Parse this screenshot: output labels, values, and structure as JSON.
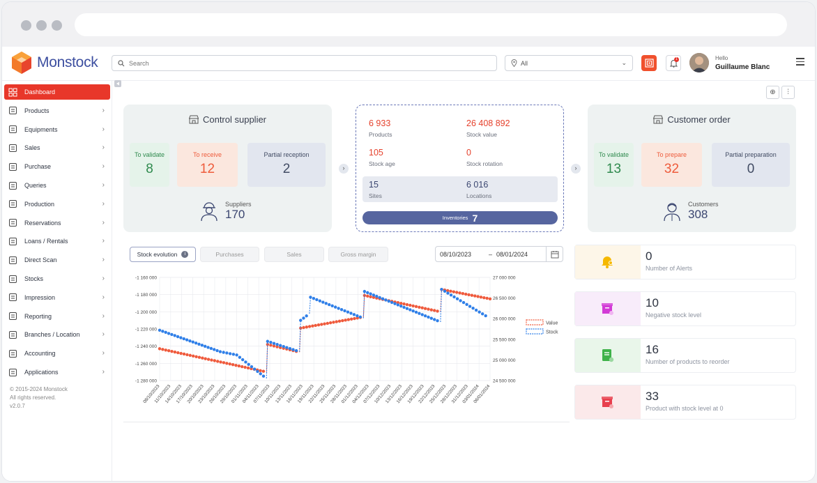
{
  "app": {
    "brand": "Monstock"
  },
  "topbar": {
    "search_placeholder": "Search",
    "site_filter": "All",
    "notifications_count": "1",
    "greeting": "Hello",
    "user_name": "Guillaume Blanc"
  },
  "sidebar": {
    "items": [
      {
        "label": "Dashboard",
        "icon": "grid-icon",
        "active": true
      },
      {
        "label": "Products",
        "icon": "box-icon"
      },
      {
        "label": "Equipments",
        "icon": "wrench-icon"
      },
      {
        "label": "Sales",
        "icon": "sales-icon"
      },
      {
        "label": "Purchase",
        "icon": "truck-icon"
      },
      {
        "label": "Queries",
        "icon": "alert-icon"
      },
      {
        "label": "Production",
        "icon": "production-icon"
      },
      {
        "label": "Reservations",
        "icon": "calendar-icon"
      },
      {
        "label": "Loans / Rentals",
        "icon": "pin-icon"
      },
      {
        "label": "Direct Scan",
        "icon": "scan-icon"
      },
      {
        "label": "Stocks",
        "icon": "warehouse-icon"
      },
      {
        "label": "Impression",
        "icon": "tag-icon"
      },
      {
        "label": "Reporting",
        "icon": "report-icon"
      },
      {
        "label": "Branches / Location",
        "icon": "branch-icon"
      },
      {
        "label": "Accounting",
        "icon": "accounting-icon"
      },
      {
        "label": "Applications",
        "icon": "clipboard-icon"
      }
    ],
    "copyright": [
      "© 2015-2024 Monstock",
      "All rights reserved.",
      "v2.0.7"
    ]
  },
  "control_supplier": {
    "title": "Control supplier",
    "to_validate": {
      "label": "To validate",
      "value": "8"
    },
    "to_receive": {
      "label": "To receive",
      "value": "12"
    },
    "partial_reception": {
      "label": "Partial reception",
      "value": "2"
    },
    "suppliers": {
      "label": "Suppliers",
      "value": "170"
    }
  },
  "stock_summary": {
    "products": {
      "label": "Products",
      "value": "6 933"
    },
    "stock_value": {
      "label": "Stock value",
      "value": "26 408 892"
    },
    "stock_age": {
      "label": "Stock age",
      "value": "105"
    },
    "stock_rotation": {
      "label": "Stock rotation",
      "value": "0"
    },
    "sites": {
      "label": "Sites",
      "value": "15"
    },
    "locations": {
      "label": "Locations",
      "value": "6 016"
    },
    "inventories": {
      "label": "Inventories",
      "value": "7"
    }
  },
  "customer_order": {
    "title": "Customer order",
    "to_validate": {
      "label": "To validate",
      "value": "13"
    },
    "to_prepare": {
      "label": "To prepare",
      "value": "32"
    },
    "partial_preparation": {
      "label": "Partial preparation",
      "value": "0"
    },
    "customers": {
      "label": "Customers",
      "value": "308"
    }
  },
  "tabs": [
    "Stock evolution",
    "Purchases",
    "Sales",
    "Gross margin"
  ],
  "date_range": {
    "from": "08/10/2023",
    "sep": "–",
    "to": "08/01/2024"
  },
  "kpis": [
    {
      "value": "0",
      "label": "Number of Alerts",
      "icon": "bell-alert-icon",
      "bg": "#fdf6e8",
      "color": "#f5b800"
    },
    {
      "value": "10",
      "label": "Negative stock level",
      "icon": "box-minus-icon",
      "bg": "#f8ecfa",
      "color": "#d23bd6"
    },
    {
      "value": "16",
      "label": "Number of products to reorder",
      "icon": "reorder-icon",
      "bg": "#e9f6ea",
      "color": "#3fb24a"
    },
    {
      "value": "33",
      "label": "Product with stock level at 0",
      "icon": "box-zero-icon",
      "bg": "#fbe9ea",
      "color": "#e8404e"
    }
  ],
  "chart_data": {
    "type": "line",
    "x": [
      "08/10/2023",
      "11/10/2023",
      "14/10/2023",
      "17/10/2023",
      "20/10/2023",
      "23/10/2023",
      "26/10/2023",
      "29/10/2023",
      "01/11/2023",
      "04/11/2023",
      "07/11/2023",
      "10/11/2023",
      "13/11/2023",
      "16/11/2023",
      "19/11/2023",
      "22/11/2023",
      "25/11/2023",
      "28/11/2023",
      "01/12/2023",
      "04/12/2023",
      "07/12/2023",
      "10/12/2023",
      "13/12/2023",
      "16/12/2023",
      "19/12/2023",
      "22/12/2023",
      "25/12/2023",
      "28/12/2023",
      "31/12/2023",
      "03/01/2024",
      "06/01/2024"
    ],
    "y_left": {
      "ticks": [
        "-1 160 000",
        "-1 180 000",
        "-1 200 000",
        "-1 220 000",
        "-1 240 000",
        "-1 260 000",
        "-1 280 000"
      ],
      "range": [
        -1280000,
        -1160000
      ]
    },
    "y_right": {
      "ticks": [
        "27 000 000",
        "26 500 000",
        "26 000 000",
        "25 500 000",
        "25 000 000",
        "24 500 000"
      ],
      "range": [
        24500000,
        27000000
      ]
    },
    "legend_position": "right",
    "series": [
      {
        "name": "Value",
        "axis": "left",
        "color": "#ef5a3c",
        "points": [
          [
            0,
            -1243000
          ],
          [
            9.7,
            -1270000
          ],
          [
            9.8,
            -1238000
          ],
          [
            12.7,
            -1247000
          ],
          [
            12.8,
            -1219000
          ],
          [
            18.5,
            -1206000
          ],
          [
            18.6,
            -1181000
          ],
          [
            25.5,
            -1200000
          ],
          [
            25.6,
            -1174000
          ],
          [
            30,
            -1185000
          ]
        ]
      },
      {
        "name": "Stock",
        "axis": "right",
        "color": "#2f7fe8",
        "points": [
          [
            0,
            25720000
          ],
          [
            5.5,
            25200000
          ],
          [
            7,
            25120000
          ],
          [
            9.7,
            24550000
          ],
          [
            9.8,
            25450000
          ],
          [
            12.7,
            25200000
          ],
          [
            12.8,
            25960000
          ],
          [
            13.6,
            26120000
          ],
          [
            13.7,
            26520000
          ],
          [
            18.5,
            26010000
          ],
          [
            18.6,
            26660000
          ],
          [
            25.5,
            25920000
          ],
          [
            25.6,
            26710000
          ],
          [
            29.6,
            26070000
          ]
        ]
      }
    ],
    "grid": true
  }
}
